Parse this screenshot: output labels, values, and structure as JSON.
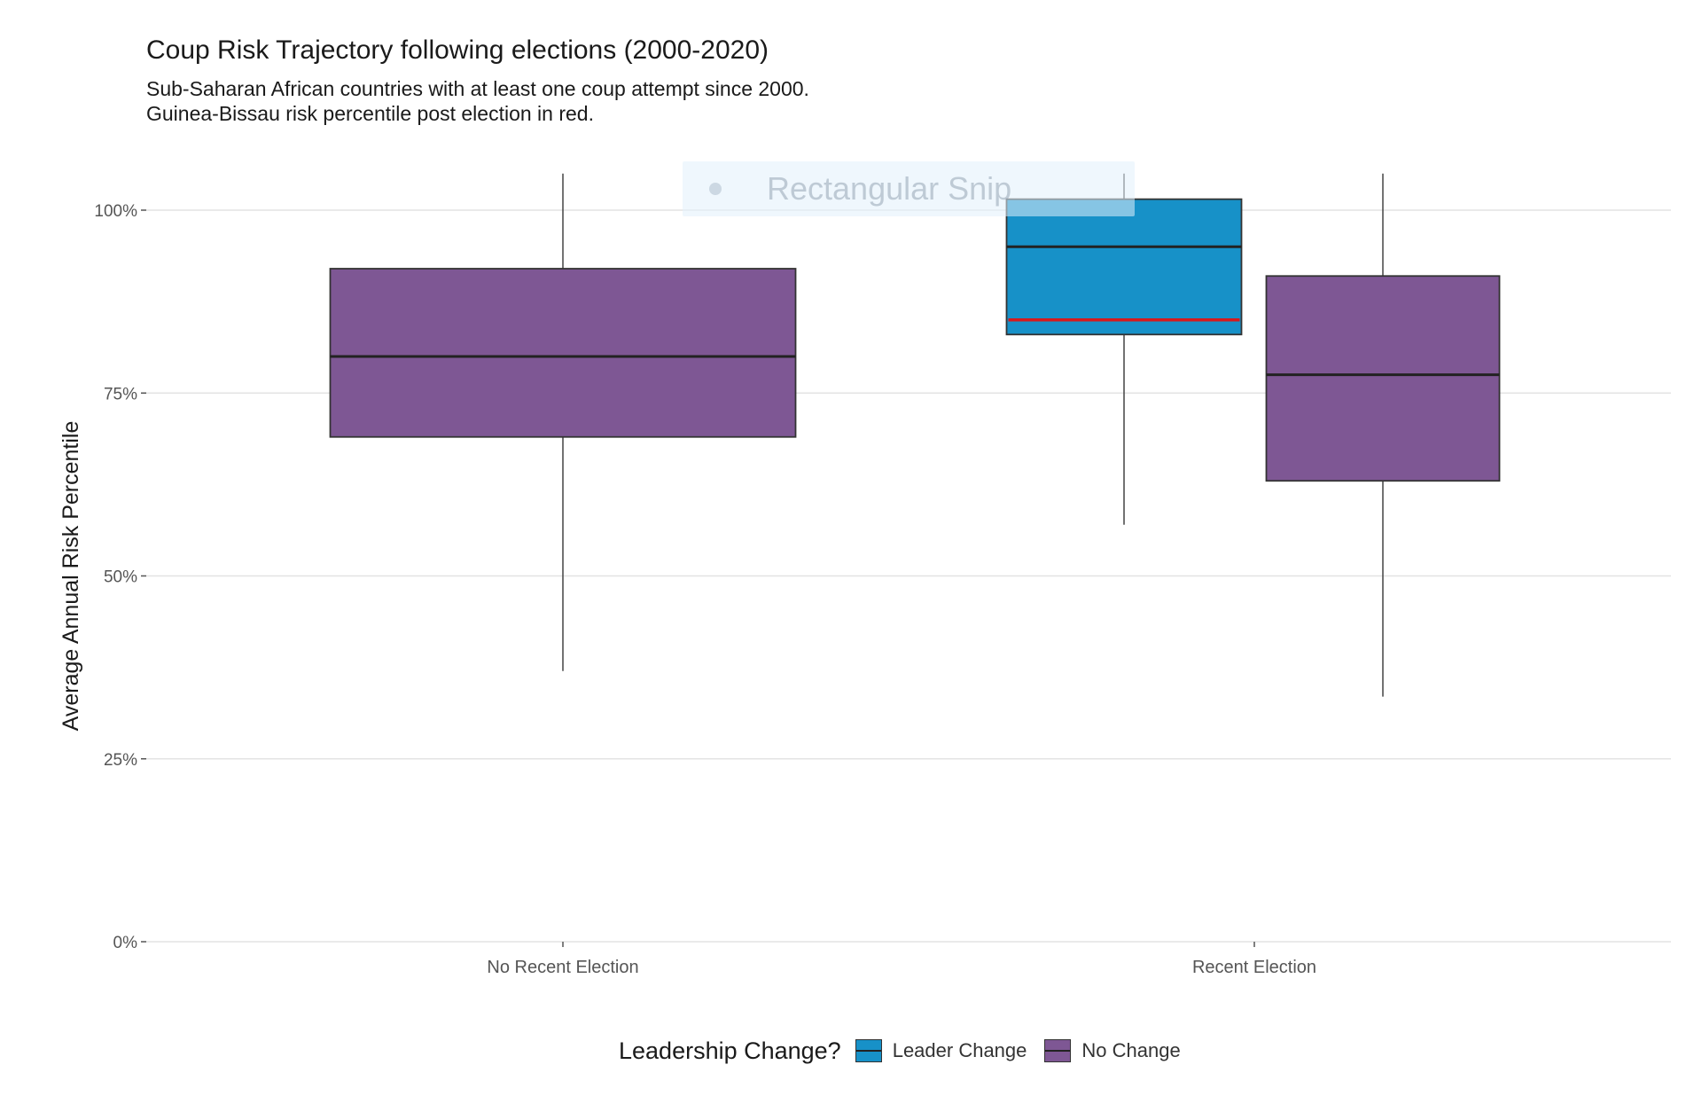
{
  "chart_data": {
    "type": "boxplot",
    "title": "Coup Risk Trajectory following elections (2000-2020)",
    "subtitle": [
      "Sub-Saharan African countries with at least one coup attempt since 2000.",
      "Guinea-Bissau risk percentile post election in red."
    ],
    "xlabel": "",
    "ylabel": "Average Annual Risk Percentile",
    "ylim": [
      0,
      100
    ],
    "y_ticks": [
      0,
      25,
      50,
      75,
      100
    ],
    "y_tick_labels": [
      "0%",
      "25%",
      "50%",
      "75%",
      "100%"
    ],
    "categories": [
      "No Recent Election",
      "Recent Election"
    ],
    "boxes": [
      {
        "category": "No Recent Election",
        "group": "No Change",
        "whisker_low": 37,
        "q1": 69,
        "median": 80,
        "q3": 92,
        "whisker_high": 105
      },
      {
        "category": "Recent Election",
        "group": "Leader Change",
        "whisker_low": 57,
        "q1": 83,
        "median": 95,
        "q3": 101.5,
        "whisker_high": 105
      },
      {
        "category": "Recent Election",
        "group": "No Change",
        "whisker_low": 33.5,
        "q1": 63,
        "median": 77.5,
        "q3": 91,
        "whisker_high": 105
      }
    ],
    "highlight": {
      "label": "Guinea-Bissau",
      "category": "Recent Election",
      "group": "Leader Change",
      "value": 85,
      "color": "#d7191c"
    },
    "legend": {
      "title": "Leadership Change?",
      "position": "bottom",
      "entries": [
        {
          "name": "Leader Change",
          "color": "#1791c8"
        },
        {
          "name": "No Change",
          "color": "#7e5794"
        }
      ]
    },
    "grid": true
  },
  "overlay": {
    "snip_label": "Rectangular Snip"
  }
}
